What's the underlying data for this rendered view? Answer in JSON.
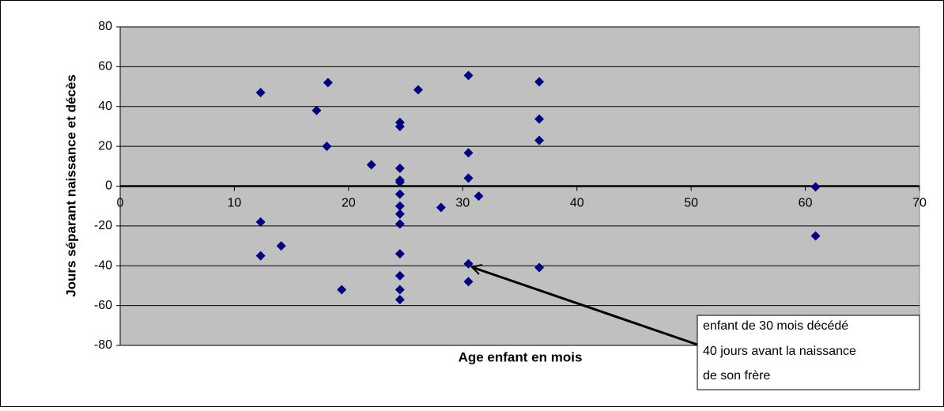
{
  "chart_data": {
    "type": "scatter",
    "xlabel": "Age enfant en mois",
    "ylabel": "Jours séparant  naissance et décès",
    "color": "#000080",
    "xlim": [
      0,
      70
    ],
    "xticks": [
      0,
      10,
      20,
      30,
      40,
      50,
      60,
      70
    ],
    "ylim": [
      -80,
      80
    ],
    "yticks": [
      -80,
      -60,
      -40,
      -20,
      0,
      20,
      40,
      60,
      80
    ],
    "grid": true,
    "x": [
      12.3,
      12.3,
      12.3,
      14.1,
      17.2,
      18.2,
      18.1,
      19.4,
      22.0,
      24.5,
      24.5,
      24.5,
      24.5,
      24.5,
      24.5,
      24.5,
      24.5,
      24.5,
      24.5,
      24.5,
      24.5,
      24.5,
      26.1,
      28.1,
      30.5,
      30.5,
      30.5,
      30.5,
      30.5,
      31.4,
      36.7,
      36.7,
      36.7,
      36.7,
      60.9,
      60.9
    ],
    "values": [
      47,
      -18,
      -35,
      -30,
      38,
      52,
      20,
      -52,
      10.7,
      32,
      30,
      9,
      3,
      2,
      -4,
      -10,
      -14,
      -19,
      -34,
      -45,
      -52,
      -57,
      48.4,
      -10.7,
      55.6,
      16.7,
      4,
      -39,
      -48,
      -5,
      52.4,
      33.7,
      23,
      -40.9,
      -0.4,
      -25
    ],
    "annotation": [
      "enfant de 30 mois décédé",
      "40 jours avant la naissance",
      "de son frère"
    ]
  }
}
